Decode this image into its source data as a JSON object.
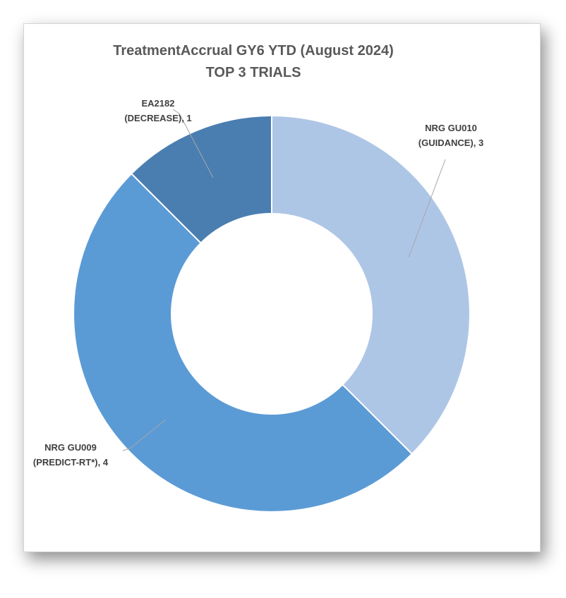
{
  "chart_data": {
    "type": "pie",
    "variant": "doughnut",
    "title": "TreatmentAccrual  GY6 YTD (August 2024)",
    "subtitle": "TOP 3 TRIALS",
    "slices": [
      {
        "label_lines": [
          "NRG GU010",
          "(GUIDANCE), 3"
        ],
        "value": 3,
        "color": "#aec6e6"
      },
      {
        "label_lines": [
          "NRG GU009",
          "(PREDICT-RT*), 4"
        ],
        "value": 4,
        "color": "#5b9bd5"
      },
      {
        "label_lines": [
          "EA2182",
          "(DECREASE), 1"
        ],
        "value": 1,
        "color": "#4a7eb0"
      }
    ],
    "legend": "none",
    "data_labels": "category, value"
  }
}
